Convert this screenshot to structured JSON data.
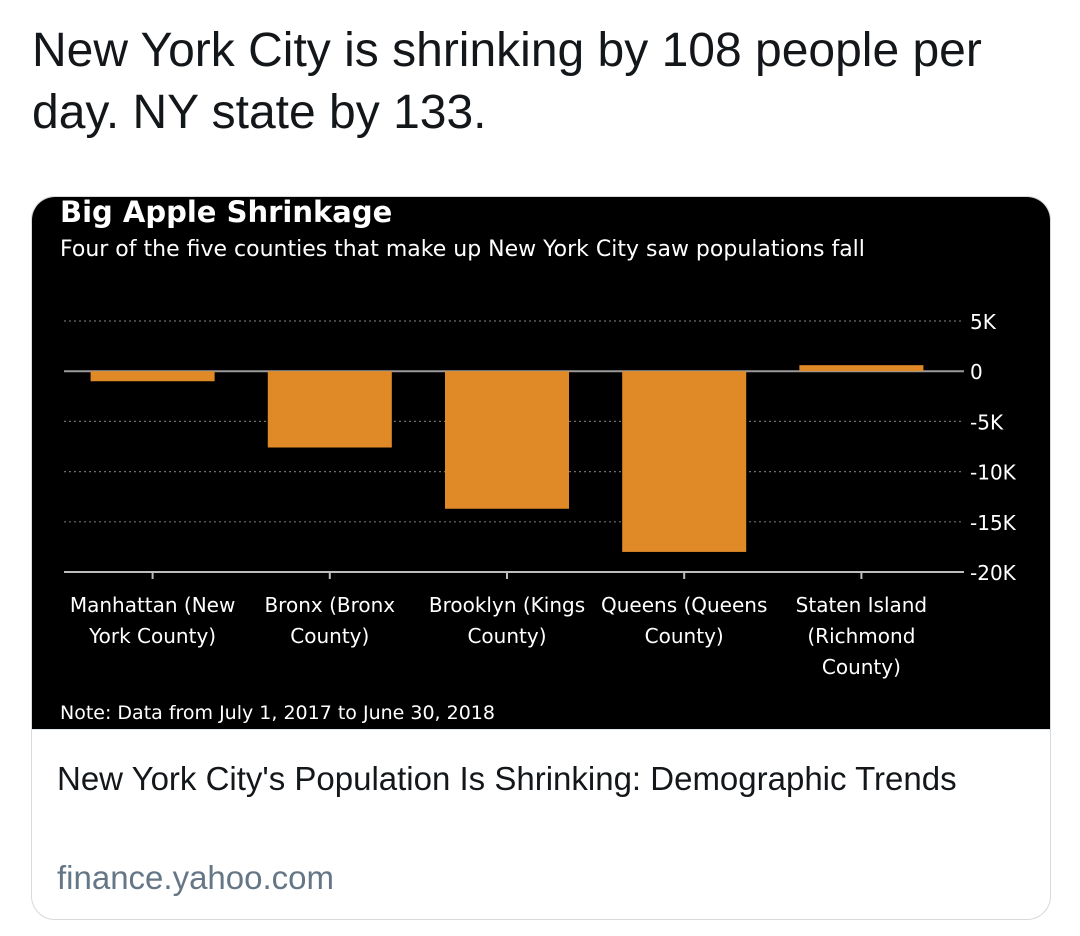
{
  "tweet": {
    "text": "New York City is shrinking by 108 people per day. NY state by 133."
  },
  "card": {
    "title": "New York City's Population Is Shrinking: Demographic Trends",
    "domain": "finance.yahoo.com"
  },
  "chart_data": {
    "type": "bar",
    "title": "Big Apple Shrinkage",
    "subtitle": "Four of the five counties that make up New York City saw populations fall",
    "categories": [
      [
        "Manhattan (New",
        "York County)"
      ],
      [
        "Bronx (Bronx",
        "County)"
      ],
      [
        "Brooklyn (Kings",
        "County)"
      ],
      [
        "Queens (Queens",
        "County)"
      ],
      [
        "Staten Island",
        "(Richmond",
        "County)"
      ]
    ],
    "values": [
      -1000,
      -7600,
      -13700,
      -18000,
      600
    ],
    "ylim": [
      -20000,
      5000
    ],
    "yticks": [
      5000,
      0,
      -5000,
      -10000,
      -15000,
      -20000
    ],
    "ytick_labels": [
      "5K",
      "0",
      "-5K",
      "-10K",
      "-15K",
      "-20K"
    ],
    "y_axis_side": "right",
    "grid": true,
    "bar_color": "#e08a27",
    "background": "#000000",
    "note": "Note: Data from July 1, 2017 to June 30, 2018"
  }
}
